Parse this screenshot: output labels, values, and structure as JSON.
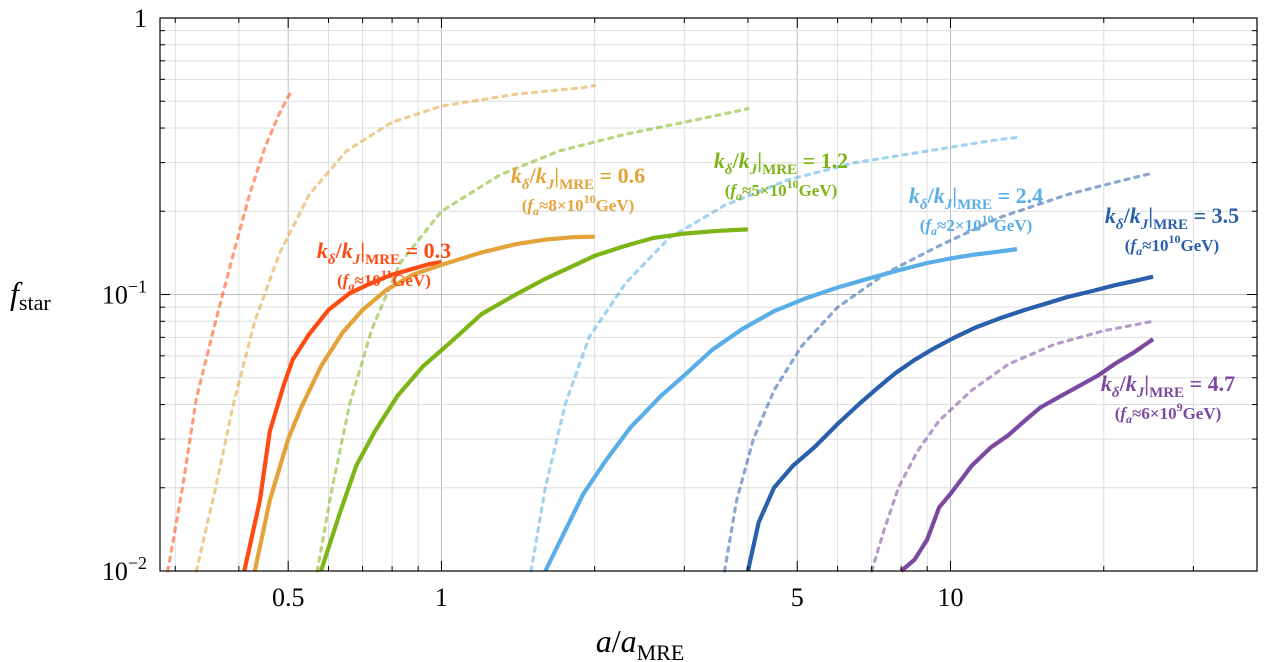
{
  "chart_data": {
    "type": "line",
    "xscale": "log",
    "yscale": "log",
    "xlim": [
      0.28,
      40
    ],
    "ylim": [
      0.01,
      1
    ],
    "grid": true,
    "xlabel": {
      "main": "a",
      "sep": "/",
      "base": "a",
      "sub": "MRE"
    },
    "ylabel": {
      "main": "f",
      "sub": "star"
    },
    "xticks": [
      {
        "value": 0.5,
        "label": "0.5"
      },
      {
        "value": 1,
        "label": "1"
      },
      {
        "value": 5,
        "label": "5"
      },
      {
        "value": 10,
        "label": "10"
      }
    ],
    "yticks": [
      {
        "value": 1,
        "label": "1"
      },
      {
        "value": 0.1,
        "label": "10",
        "sup": "−1"
      },
      {
        "value": 0.01,
        "label": "10",
        "sup": "−2"
      }
    ],
    "series": [
      {
        "ratio": "0.3",
        "fa_text": "10",
        "fa_sup": "11",
        "color": "#ff4a12",
        "solid": [
          [
            0.41,
            0.01
          ],
          [
            0.44,
            0.018
          ],
          [
            0.46,
            0.032
          ],
          [
            0.49,
            0.047
          ],
          [
            0.51,
            0.058
          ],
          [
            0.55,
            0.072
          ],
          [
            0.6,
            0.088
          ],
          [
            0.66,
            0.101
          ],
          [
            0.72,
            0.109
          ],
          [
            0.8,
            0.118
          ],
          [
            0.88,
            0.124
          ],
          [
            0.95,
            0.129
          ],
          [
            1.0,
            0.131
          ]
        ],
        "dashed": [
          [
            0.29,
            0.01
          ],
          [
            0.31,
            0.02
          ],
          [
            0.33,
            0.042
          ],
          [
            0.36,
            0.08
          ],
          [
            0.39,
            0.14
          ],
          [
            0.42,
            0.23
          ],
          [
            0.45,
            0.34
          ],
          [
            0.48,
            0.45
          ],
          [
            0.5,
            0.52
          ],
          [
            0.51,
            0.55
          ]
        ]
      },
      {
        "ratio": "0.6",
        "fa_text": "8×10",
        "fa_sup": "10",
        "color": "#e4a23a",
        "solid": [
          [
            0.43,
            0.01
          ],
          [
            0.46,
            0.018
          ],
          [
            0.5,
            0.03
          ],
          [
            0.53,
            0.039
          ],
          [
            0.58,
            0.055
          ],
          [
            0.64,
            0.073
          ],
          [
            0.7,
            0.088
          ],
          [
            0.78,
            0.104
          ],
          [
            0.88,
            0.118
          ],
          [
            1.0,
            0.128
          ],
          [
            1.2,
            0.142
          ],
          [
            1.4,
            0.152
          ],
          [
            1.6,
            0.158
          ],
          [
            1.8,
            0.161
          ],
          [
            2.0,
            0.162
          ]
        ],
        "dashed": [
          [
            0.33,
            0.01
          ],
          [
            0.36,
            0.02
          ],
          [
            0.39,
            0.04
          ],
          [
            0.43,
            0.08
          ],
          [
            0.48,
            0.14
          ],
          [
            0.55,
            0.23
          ],
          [
            0.65,
            0.33
          ],
          [
            0.8,
            0.42
          ],
          [
            1.0,
            0.48
          ],
          [
            1.4,
            0.53
          ],
          [
            1.9,
            0.56
          ],
          [
            2.0,
            0.57
          ]
        ]
      },
      {
        "ratio": "1.2",
        "fa_text": "5×10",
        "fa_sup": "10",
        "color": "#7cb515",
        "solid": [
          [
            0.58,
            0.01
          ],
          [
            0.63,
            0.016
          ],
          [
            0.68,
            0.024
          ],
          [
            0.74,
            0.032
          ],
          [
            0.82,
            0.043
          ],
          [
            0.92,
            0.055
          ],
          [
            1.05,
            0.068
          ],
          [
            1.2,
            0.085
          ],
          [
            1.4,
            0.1
          ],
          [
            1.6,
            0.114
          ],
          [
            1.8,
            0.126
          ],
          [
            2.0,
            0.138
          ],
          [
            2.3,
            0.15
          ],
          [
            2.6,
            0.16
          ],
          [
            3.0,
            0.166
          ],
          [
            3.5,
            0.17
          ],
          [
            4.0,
            0.172
          ]
        ],
        "dashed": [
          [
            0.57,
            0.01
          ],
          [
            0.61,
            0.02
          ],
          [
            0.66,
            0.04
          ],
          [
            0.73,
            0.075
          ],
          [
            0.83,
            0.13
          ],
          [
            1.0,
            0.2
          ],
          [
            1.3,
            0.27
          ],
          [
            1.7,
            0.33
          ],
          [
            2.3,
            0.38
          ],
          [
            3.0,
            0.42
          ],
          [
            3.8,
            0.46
          ],
          [
            4.0,
            0.47
          ]
        ]
      },
      {
        "ratio": "2.4",
        "fa_text": "2×10",
        "fa_sup": "10",
        "color": "#5aaee8",
        "solid": [
          [
            1.6,
            0.01
          ],
          [
            1.75,
            0.014
          ],
          [
            1.9,
            0.019
          ],
          [
            2.1,
            0.025
          ],
          [
            2.35,
            0.033
          ],
          [
            2.7,
            0.043
          ],
          [
            3.0,
            0.051
          ],
          [
            3.4,
            0.063
          ],
          [
            3.9,
            0.075
          ],
          [
            4.5,
            0.087
          ],
          [
            5.2,
            0.097
          ],
          [
            6.0,
            0.106
          ],
          [
            7.0,
            0.115
          ],
          [
            8.0,
            0.123
          ],
          [
            9.0,
            0.13
          ],
          [
            10.0,
            0.135
          ],
          [
            11.0,
            0.139
          ],
          [
            12.5,
            0.143
          ],
          [
            13.5,
            0.146
          ]
        ],
        "dashed": [
          [
            1.5,
            0.01
          ],
          [
            1.6,
            0.02
          ],
          [
            1.75,
            0.04
          ],
          [
            1.95,
            0.07
          ],
          [
            2.3,
            0.11
          ],
          [
            2.8,
            0.16
          ],
          [
            3.6,
            0.21
          ],
          [
            4.8,
            0.26
          ],
          [
            6.5,
            0.3
          ],
          [
            9.0,
            0.33
          ],
          [
            12.0,
            0.36
          ],
          [
            13.5,
            0.37
          ]
        ]
      },
      {
        "ratio": "3.5",
        "fa_text": "10",
        "fa_sup": "10",
        "color": "#2a5fab",
        "solid": [
          [
            4.0,
            0.01
          ],
          [
            4.2,
            0.015
          ],
          [
            4.5,
            0.02
          ],
          [
            4.9,
            0.024
          ],
          [
            5.4,
            0.028
          ],
          [
            6.0,
            0.034
          ],
          [
            6.6,
            0.04
          ],
          [
            7.2,
            0.046
          ],
          [
            7.8,
            0.052
          ],
          [
            8.5,
            0.058
          ],
          [
            9.3,
            0.064
          ],
          [
            10.2,
            0.07
          ],
          [
            11.2,
            0.076
          ],
          [
            12.5,
            0.082
          ],
          [
            14.0,
            0.088
          ],
          [
            15.5,
            0.093
          ],
          [
            17.0,
            0.098
          ],
          [
            19.0,
            0.103
          ],
          [
            21.0,
            0.108
          ],
          [
            23.0,
            0.112
          ],
          [
            25.0,
            0.116
          ]
        ],
        "dashed": [
          [
            3.6,
            0.01
          ],
          [
            3.8,
            0.018
          ],
          [
            4.1,
            0.03
          ],
          [
            4.5,
            0.045
          ],
          [
            5.1,
            0.065
          ],
          [
            6.0,
            0.09
          ],
          [
            7.5,
            0.12
          ],
          [
            9.5,
            0.15
          ],
          [
            12.5,
            0.19
          ],
          [
            17.0,
            0.23
          ],
          [
            22.0,
            0.26
          ],
          [
            25.0,
            0.275
          ]
        ]
      },
      {
        "ratio": "4.7",
        "fa_text": "6×10",
        "fa_sup": "9",
        "color": "#7b4aa0",
        "solid": [
          [
            8.0,
            0.01
          ],
          [
            8.5,
            0.011
          ],
          [
            9.0,
            0.013
          ],
          [
            9.5,
            0.017
          ],
          [
            10.0,
            0.019
          ],
          [
            11.0,
            0.024
          ],
          [
            12.0,
            0.028
          ],
          [
            13.0,
            0.031
          ],
          [
            14.0,
            0.035
          ],
          [
            15.0,
            0.039
          ],
          [
            16.5,
            0.043
          ],
          [
            18.0,
            0.047
          ],
          [
            19.5,
            0.051
          ],
          [
            21.0,
            0.056
          ],
          [
            23.0,
            0.062
          ],
          [
            25.0,
            0.069
          ]
        ],
        "dashed": [
          [
            7.0,
            0.01
          ],
          [
            7.4,
            0.014
          ],
          [
            7.9,
            0.02
          ],
          [
            8.6,
            0.027
          ],
          [
            9.5,
            0.035
          ],
          [
            11.0,
            0.045
          ],
          [
            13.0,
            0.056
          ],
          [
            16.0,
            0.066
          ],
          [
            20.0,
            0.074
          ],
          [
            25.0,
            0.08
          ]
        ]
      }
    ]
  }
}
